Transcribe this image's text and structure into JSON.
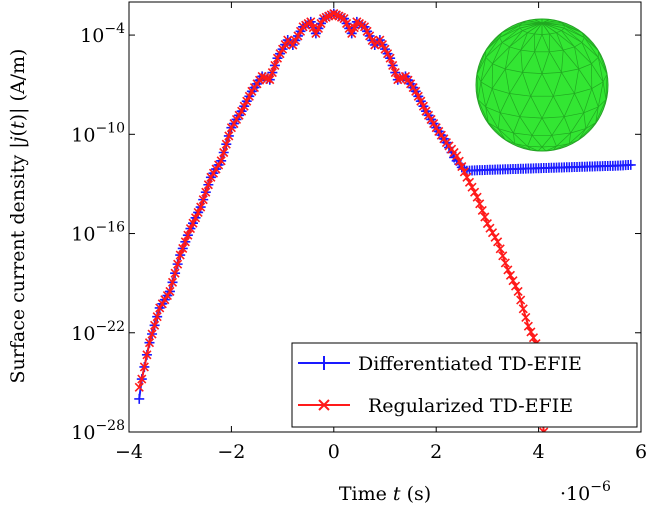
{
  "chart_data": {
    "type": "line",
    "xlabel": "Time t (s)",
    "ylabel": "Surface current density |j(t)| (A/m)",
    "x_multiplier_label": "·10",
    "x_multiplier_exp": "−6",
    "xlim": [
      -4,
      6
    ],
    "ylim_log10": [
      -28,
      -2
    ],
    "yscale": "log",
    "x_ticks": [
      {
        "value": -4,
        "label": "−4"
      },
      {
        "value": -2,
        "label": "−2"
      },
      {
        "value": 0,
        "label": "0"
      },
      {
        "value": 2,
        "label": "2"
      },
      {
        "value": 4,
        "label": "4"
      },
      {
        "value": 6,
        "label": "6"
      }
    ],
    "y_ticks": [
      {
        "value": -28,
        "base": "10",
        "exp": "−28"
      },
      {
        "value": -22,
        "base": "10",
        "exp": "−22"
      },
      {
        "value": -16,
        "base": "10",
        "exp": "−16"
      },
      {
        "value": -10,
        "base": "10",
        "exp": "−10"
      },
      {
        "value": -4,
        "base": "10",
        "exp": "−4"
      }
    ],
    "legend_position": "bottom-right",
    "inset": "sphere-mesh",
    "series": [
      {
        "name": "Differentiated TD-EFIE",
        "color": "#1a1aff",
        "marker": "+",
        "log10_points": [
          [
            -3.8,
            -26.0
          ],
          [
            -3.75,
            -24.8
          ],
          [
            -3.6,
            -22.6
          ],
          [
            -3.4,
            -20.5
          ],
          [
            -3.2,
            -19.5
          ],
          [
            -3.0,
            -17.3
          ],
          [
            -2.8,
            -15.7
          ],
          [
            -2.6,
            -14.4
          ],
          [
            -2.4,
            -12.6
          ],
          [
            -2.2,
            -11.6
          ],
          [
            -2.0,
            -9.6
          ],
          [
            -1.8,
            -8.6
          ],
          [
            -1.6,
            -7.4
          ],
          [
            -1.4,
            -6.5
          ],
          [
            -1.25,
            -6.7
          ],
          [
            -1.1,
            -5.4
          ],
          [
            -0.9,
            -4.3
          ],
          [
            -0.8,
            -4.6
          ],
          [
            -0.6,
            -3.5
          ],
          [
            -0.45,
            -3.2
          ],
          [
            -0.35,
            -3.9
          ],
          [
            -0.2,
            -3.0
          ],
          [
            0.0,
            -2.7
          ],
          [
            0.2,
            -3.0
          ],
          [
            0.35,
            -3.9
          ],
          [
            0.45,
            -3.2
          ],
          [
            0.6,
            -3.5
          ],
          [
            0.8,
            -4.6
          ],
          [
            0.9,
            -4.3
          ],
          [
            1.1,
            -5.4
          ],
          [
            1.25,
            -6.7
          ],
          [
            1.4,
            -6.5
          ],
          [
            1.6,
            -7.4
          ],
          [
            1.8,
            -8.6
          ],
          [
            2.0,
            -9.6
          ],
          [
            2.2,
            -10.5
          ],
          [
            2.35,
            -11.4
          ],
          [
            2.5,
            -12.0
          ],
          [
            2.6,
            -12.2
          ],
          [
            3.0,
            -12.15
          ],
          [
            3.5,
            -12.1
          ],
          [
            4.0,
            -12.05
          ],
          [
            4.5,
            -12.0
          ],
          [
            5.0,
            -11.95
          ],
          [
            5.5,
            -11.9
          ],
          [
            5.8,
            -11.85
          ]
        ]
      },
      {
        "name": "Regularized TD-EFIE",
        "color": "#ff1a1a",
        "marker": "x",
        "log10_points": [
          [
            -3.8,
            -25.3
          ],
          [
            -3.75,
            -24.8
          ],
          [
            -3.6,
            -22.6
          ],
          [
            -3.4,
            -20.5
          ],
          [
            -3.2,
            -19.5
          ],
          [
            -3.0,
            -17.3
          ],
          [
            -2.8,
            -15.7
          ],
          [
            -2.6,
            -14.4
          ],
          [
            -2.4,
            -12.6
          ],
          [
            -2.2,
            -11.6
          ],
          [
            -2.0,
            -9.6
          ],
          [
            -1.8,
            -8.6
          ],
          [
            -1.6,
            -7.4
          ],
          [
            -1.4,
            -6.5
          ],
          [
            -1.25,
            -6.7
          ],
          [
            -1.1,
            -5.4
          ],
          [
            -0.9,
            -4.3
          ],
          [
            -0.8,
            -4.6
          ],
          [
            -0.6,
            -3.5
          ],
          [
            -0.45,
            -3.2
          ],
          [
            -0.35,
            -3.9
          ],
          [
            -0.2,
            -3.0
          ],
          [
            0.0,
            -2.7
          ],
          [
            0.2,
            -3.0
          ],
          [
            0.35,
            -3.9
          ],
          [
            0.45,
            -3.2
          ],
          [
            0.6,
            -3.5
          ],
          [
            0.8,
            -4.6
          ],
          [
            0.9,
            -4.3
          ],
          [
            1.1,
            -5.4
          ],
          [
            1.25,
            -6.7
          ],
          [
            1.4,
            -6.5
          ],
          [
            1.6,
            -7.4
          ],
          [
            1.8,
            -8.6
          ],
          [
            2.0,
            -9.6
          ],
          [
            2.2,
            -10.5
          ],
          [
            2.4,
            -11.3
          ],
          [
            2.6,
            -12.6
          ],
          [
            2.8,
            -13.8
          ],
          [
            3.0,
            -15.4
          ],
          [
            3.2,
            -16.5
          ],
          [
            3.4,
            -18.2
          ],
          [
            3.6,
            -19.5
          ],
          [
            3.8,
            -21.6
          ],
          [
            4.0,
            -23.0
          ],
          [
            4.1,
            -28.0
          ]
        ]
      }
    ]
  }
}
